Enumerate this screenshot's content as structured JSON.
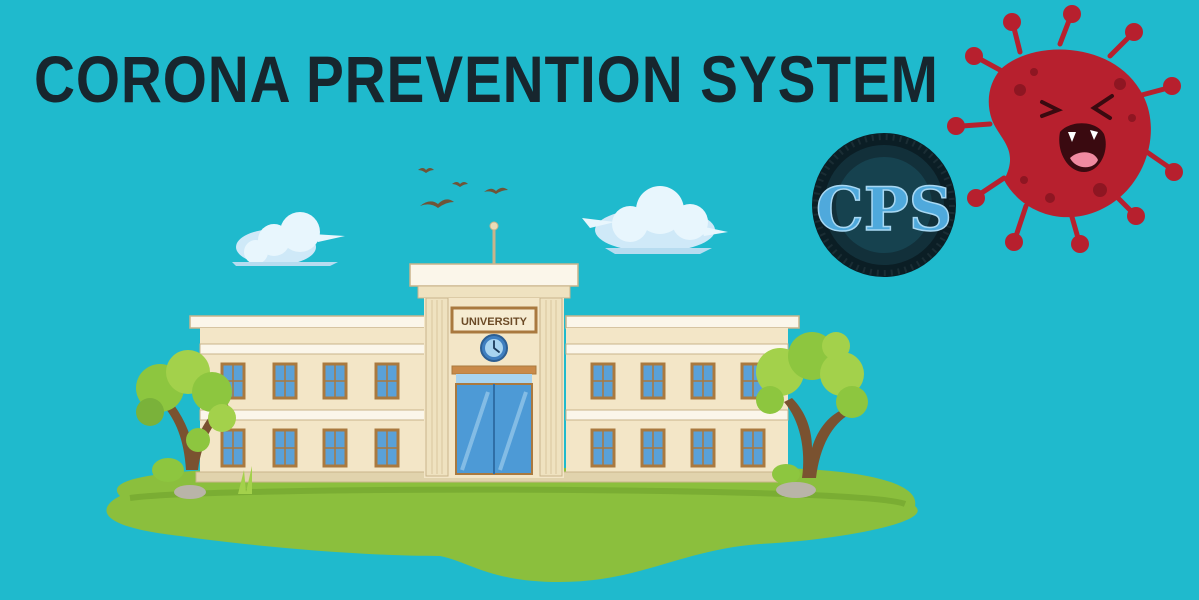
{
  "title": "CORONA PREVENTION SYSTEM",
  "building_sign": "UNIVERSITY",
  "logo_text": "CPS",
  "colors": {
    "background": "#1fbacd",
    "title": "#17262e",
    "building_wall": "#f3e6c7",
    "building_trim": "#c9b48b",
    "roof": "#fbf6ea",
    "window_frame": "#a9793f",
    "window_glass": "#5aa1d8",
    "grass": "#8bbf3d",
    "tree_leaves": "#8dc63f",
    "tree_trunk": "#7a5230",
    "virus": "#b7202e",
    "logo_ring": "#0b1e25",
    "logo_letters": "#4fa9dc"
  },
  "icons": {
    "virus": "virus-icon",
    "logo": "cps-logo-badge",
    "clock": "clock-icon"
  }
}
